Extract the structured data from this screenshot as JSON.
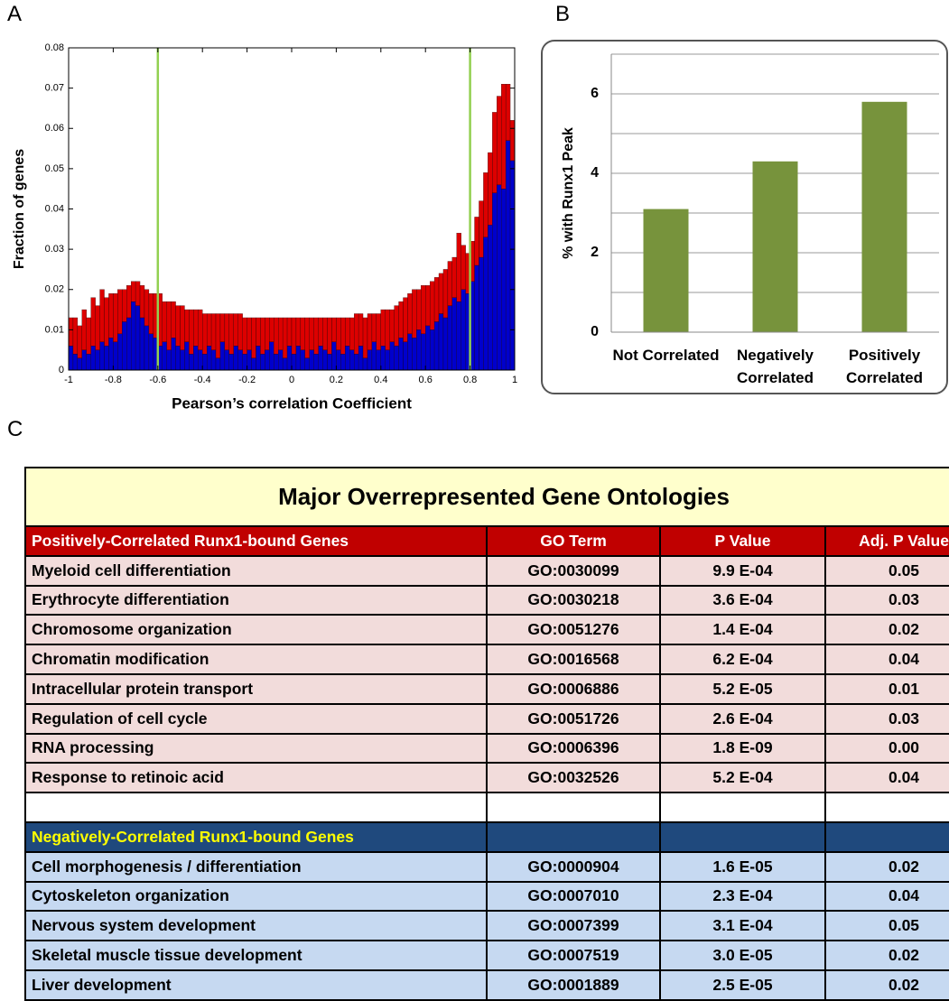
{
  "panel_labels": [
    "A",
    "B",
    "C"
  ],
  "chart_data": [
    {
      "type": "histogram",
      "xlabel": "Pearson’s correlation Coefficient",
      "ylabel": "Fraction of genes",
      "bins": [
        -1,
        -0.98,
        -0.96,
        -0.94,
        -0.92,
        -0.9,
        -0.88,
        -0.86,
        -0.84,
        -0.82,
        -0.8,
        -0.78,
        -0.76,
        -0.74,
        -0.72,
        -0.7,
        -0.68,
        -0.66,
        -0.64,
        -0.62,
        -0.6,
        -0.58,
        -0.56,
        -0.54,
        -0.52,
        -0.5,
        -0.48,
        -0.46,
        -0.44,
        -0.42,
        -0.4,
        -0.38,
        -0.36,
        -0.34,
        -0.32,
        -0.3,
        -0.28,
        -0.26,
        -0.24,
        -0.22,
        -0.2,
        -0.18,
        -0.16,
        -0.14,
        -0.12,
        -0.1,
        -0.08,
        -0.06,
        -0.04,
        -0.02,
        0,
        0.02,
        0.04,
        0.06,
        0.08,
        0.1,
        0.12,
        0.14,
        0.16,
        0.18,
        0.2,
        0.22,
        0.24,
        0.26,
        0.28,
        0.3,
        0.32,
        0.34,
        0.36,
        0.38,
        0.4,
        0.42,
        0.44,
        0.46,
        0.48,
        0.5,
        0.52,
        0.54,
        0.56,
        0.58,
        0.6,
        0.62,
        0.64,
        0.66,
        0.68,
        0.7,
        0.72,
        0.74,
        0.76,
        0.78,
        0.8,
        0.82,
        0.84,
        0.86,
        0.88,
        0.9,
        0.92,
        0.94,
        0.96,
        0.98,
        1
      ],
      "series": [
        {
          "color": "#0000cc",
          "values": [
            0.006,
            0.004,
            0.003,
            0.005,
            0.004,
            0.006,
            0.005,
            0.007,
            0.006,
            0.008,
            0.007,
            0.009,
            0.012,
            0.013,
            0.017,
            0.016,
            0.013,
            0.011,
            0.009,
            0.008,
            0.006,
            0.007,
            0.005,
            0.008,
            0.006,
            0.005,
            0.007,
            0.004,
            0.006,
            0.005,
            0.004,
            0.006,
            0.005,
            0.003,
            0.007,
            0.005,
            0.004,
            0.006,
            0.005,
            0.004,
            0.005,
            0.003,
            0.006,
            0.004,
            0.005,
            0.007,
            0.004,
            0.005,
            0.003,
            0.006,
            0.004,
            0.006,
            0.005,
            0.003,
            0.005,
            0.004,
            0.006,
            0.005,
            0.004,
            0.007,
            0.005,
            0.004,
            0.006,
            0.005,
            0.004,
            0.006,
            0.003,
            0.005,
            0.007,
            0.005,
            0.006,
            0.005,
            0.007,
            0.006,
            0.008,
            0.007,
            0.009,
            0.008,
            0.01,
            0.009,
            0.011,
            0.01,
            0.012,
            0.014,
            0.013,
            0.016,
            0.018,
            0.017,
            0.02,
            0.019,
            0.022,
            0.026,
            0.028,
            0.033,
            0.036,
            0.044,
            0.046,
            0.045,
            0.057,
            0.052
          ]
        },
        {
          "color": "#dd0000",
          "values": [
            0.007,
            0.009,
            0.008,
            0.01,
            0.009,
            0.012,
            0.011,
            0.013,
            0.012,
            0.011,
            0.012,
            0.011,
            0.008,
            0.008,
            0.005,
            0.006,
            0.008,
            0.009,
            0.01,
            0.011,
            0.013,
            0.01,
            0.012,
            0.009,
            0.01,
            0.011,
            0.008,
            0.011,
            0.009,
            0.01,
            0.01,
            0.008,
            0.009,
            0.011,
            0.007,
            0.009,
            0.01,
            0.008,
            0.009,
            0.009,
            0.008,
            0.01,
            0.007,
            0.009,
            0.008,
            0.006,
            0.009,
            0.008,
            0.01,
            0.007,
            0.009,
            0.007,
            0.008,
            0.01,
            0.008,
            0.009,
            0.007,
            0.008,
            0.009,
            0.006,
            0.008,
            0.009,
            0.007,
            0.008,
            0.01,
            0.008,
            0.01,
            0.009,
            0.007,
            0.009,
            0.009,
            0.01,
            0.008,
            0.01,
            0.009,
            0.011,
            0.01,
            0.012,
            0.01,
            0.012,
            0.01,
            0.012,
            0.011,
            0.01,
            0.012,
            0.011,
            0.01,
            0.017,
            0.011,
            0.01,
            0.01,
            0.012,
            0.014,
            0.016,
            0.018,
            0.02,
            0.022,
            0.026,
            0.014,
            0.01
          ]
        }
      ],
      "stacked": true,
      "vlines": [
        -0.6,
        0.8
      ],
      "vline_color": "#92d050",
      "xlim": [
        -1,
        1
      ],
      "xticks": [
        -1,
        -0.8,
        -0.6,
        -0.4,
        -0.2,
        0,
        0.2,
        0.4,
        0.6,
        0.8,
        1
      ],
      "ylim": [
        0,
        0.08
      ],
      "yticks": [
        0,
        0.01,
        0.02,
        0.03,
        0.04,
        0.05,
        0.06,
        0.07,
        0.08
      ]
    },
    {
      "type": "bar",
      "ylabel": "% with Runx1 Peak",
      "categories": [
        "Not Correlated",
        "Negatively Correlated",
        "Positively Correlated"
      ],
      "values": [
        3.1,
        4.3,
        5.8
      ],
      "color": "#77933c",
      "ylim": [
        0,
        7
      ],
      "yticks": [
        0,
        2,
        4,
        6
      ],
      "minor_gridlines": [
        1,
        3,
        5,
        7
      ],
      "grid": true
    }
  ],
  "table": {
    "title": "Major Overrepresented Gene Ontologies",
    "header": [
      "Positively-Correlated Runx1-bound Genes",
      "GO Term",
      "P Value",
      "Adj. P Value"
    ],
    "rows": [
      [
        "Myeloid cell differentiation",
        "GO:0030099",
        "9.9 E-04",
        "0.05"
      ],
      [
        "Erythrocyte differentiation",
        "GO:0030218",
        "3.6 E-04",
        "0.03"
      ],
      [
        "Chromosome organization",
        "GO:0051276",
        "1.4 E-04",
        "0.02"
      ],
      [
        "Chromatin modification",
        "GO:0016568",
        "6.2 E-04",
        "0.04"
      ],
      [
        "Intracellular protein transport",
        "GO:0006886",
        "5.2 E-05",
        "0.01"
      ],
      [
        "Regulation of cell cycle",
        "GO:0051726",
        "2.6 E-04",
        "0.03"
      ],
      [
        "RNA processing",
        "GO:0006396",
        "1.8 E-09",
        "0.00"
      ],
      [
        "Response to retinoic acid",
        "GO:0032526",
        "5.2 E-04",
        "0.04"
      ]
    ],
    "section2_header": "Negatively-Correlated Runx1-bound Genes",
    "rows2": [
      [
        "Cell morphogenesis / differentiation",
        "GO:0000904",
        "1.6 E-05",
        "0.02"
      ],
      [
        "Cytoskeleton organization",
        "GO:0007010",
        "2.3 E-04",
        "0.04"
      ],
      [
        "Nervous system development",
        "GO:0007399",
        "3.1 E-04",
        "0.05"
      ],
      [
        "Skeletal muscle tissue development",
        "GO:0007519",
        "3.0 E-05",
        "0.02"
      ],
      [
        "Liver development",
        "GO:0001889",
        "2.5 E-05",
        "0.02"
      ]
    ]
  }
}
